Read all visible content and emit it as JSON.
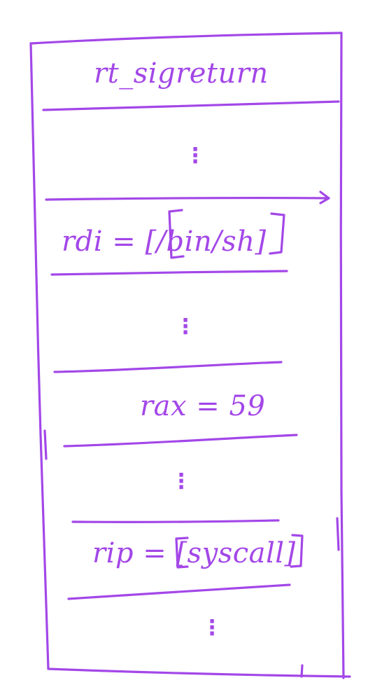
{
  "diagram": {
    "title": "rt_sigreturn",
    "ink_color": "#a347e8",
    "rows": [
      {
        "kind": "gap",
        "text": "⋮"
      },
      {
        "kind": "register",
        "text": "rdi = [/bin/sh]"
      },
      {
        "kind": "gap",
        "text": "⋮"
      },
      {
        "kind": "register",
        "text": "rax = 59"
      },
      {
        "kind": "gap",
        "text": "⋮"
      },
      {
        "kind": "register",
        "text": "rip = [syscall]"
      },
      {
        "kind": "gap",
        "text": "⋮"
      }
    ]
  }
}
